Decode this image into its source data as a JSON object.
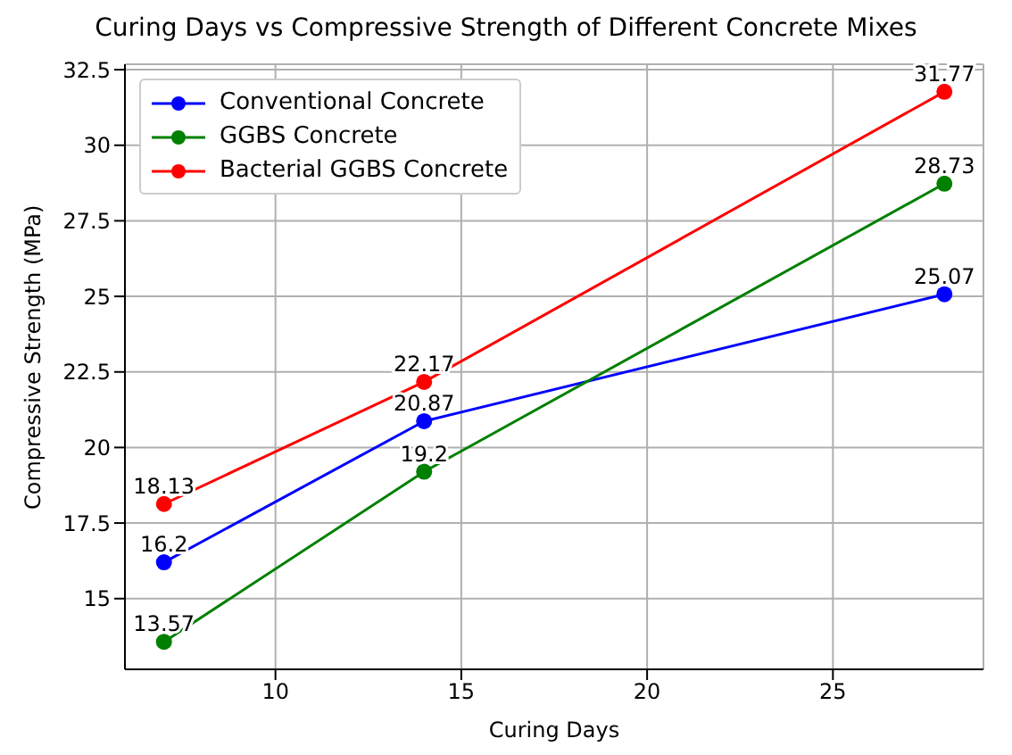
{
  "chart_data": {
    "type": "line",
    "title": "Curing Days vs Compressive Strength of Different Concrete Mixes",
    "xlabel": "Curing Days",
    "ylabel": "Compressive Strength (MPa)",
    "x": [
      7,
      14,
      28
    ],
    "series": [
      {
        "name": "Conventional Concrete",
        "color": "#0000ff",
        "values": [
          16.2,
          20.87,
          25.07
        ]
      },
      {
        "name": "GGBS Concrete",
        "color": "#008000",
        "values": [
          13.57,
          19.2,
          28.73
        ]
      },
      {
        "name": "Bacterial GGBS Concrete",
        "color": "#ff0000",
        "values": [
          18.13,
          22.17,
          31.77
        ]
      }
    ],
    "xlim": [
      5.95,
      29.05
    ],
    "xticks": [
      10,
      15,
      20,
      25
    ],
    "ylim": [
      12.66,
      32.68
    ],
    "yticks": [
      15,
      17.5,
      20,
      22.5,
      25,
      27.5,
      30,
      32.5
    ],
    "grid": true,
    "legend": "top left",
    "marker": "circle",
    "line_style": "solid",
    "data_labels": true
  }
}
